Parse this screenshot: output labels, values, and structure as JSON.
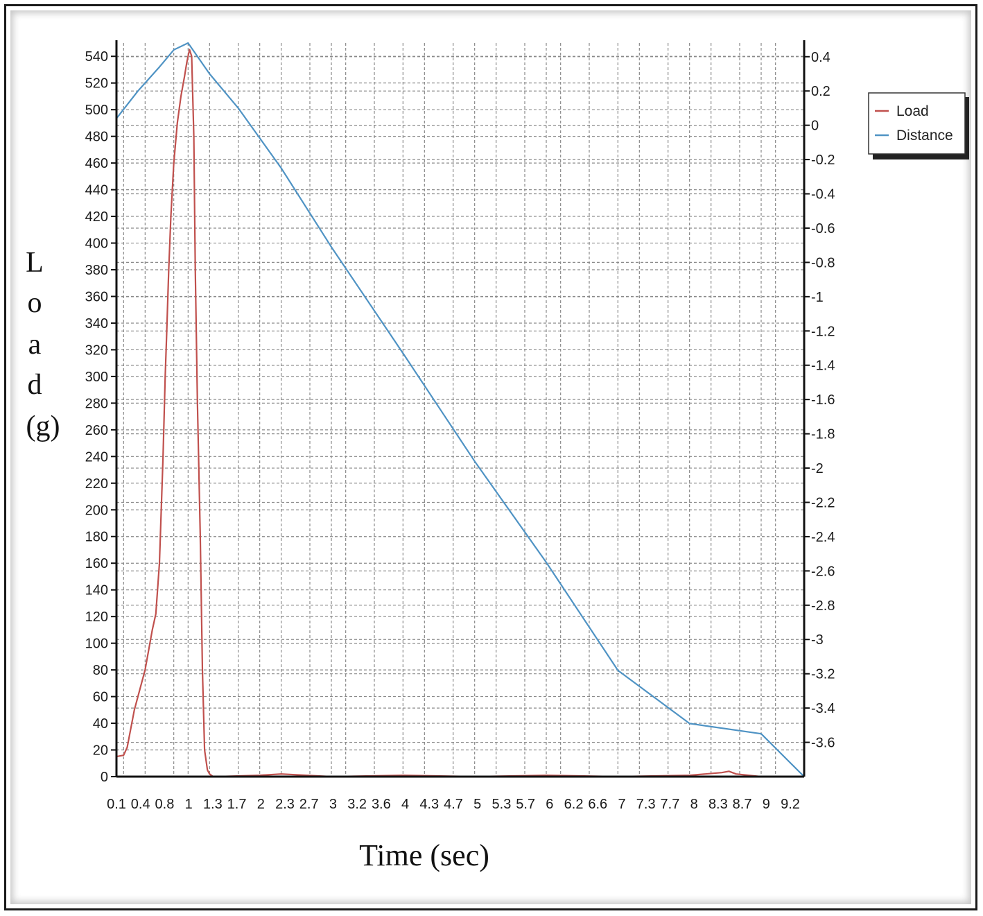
{
  "chart_data": {
    "type": "line",
    "xlabel": "Time (sec)",
    "ylabel": "Load (g)",
    "ylabel_letters": [
      "L",
      "o",
      "a",
      "d",
      "(g)"
    ],
    "x_tick_labels": [
      "0.1",
      "0.4",
      "0.8",
      "1",
      "1.3",
      "1.7",
      "2",
      "2.3",
      "2.7",
      "3",
      "3.2",
      "3.6",
      "4",
      "4.3",
      "4.7",
      "5",
      "5.3",
      "5.7",
      "6",
      "6.2",
      "6.6",
      "7",
      "7.3",
      "7.7",
      "8",
      "8.3",
      "8.7",
      "9",
      "9.2"
    ],
    "x_tick_values": [
      0.1,
      0.4,
      0.8,
      1.0,
      1.3,
      1.7,
      2.0,
      2.3,
      2.7,
      3.0,
      3.2,
      3.6,
      4.0,
      4.3,
      4.7,
      5.0,
      5.3,
      5.7,
      6.0,
      6.2,
      6.6,
      7.0,
      7.3,
      7.7,
      8.0,
      8.3,
      8.7,
      9.0,
      9.2
    ],
    "xlim": [
      0,
      9.6
    ],
    "y_left": {
      "range": [
        0,
        550
      ],
      "ticks": [
        0,
        20,
        40,
        60,
        80,
        100,
        120,
        140,
        160,
        180,
        200,
        220,
        240,
        260,
        280,
        300,
        320,
        340,
        360,
        380,
        400,
        420,
        440,
        460,
        480,
        500,
        520,
        540
      ]
    },
    "y_right": {
      "range": [
        -3.8,
        0.48
      ],
      "ticks": [
        "0.4",
        "0.2",
        "0",
        "-0.2",
        "-0.4",
        "-0.6",
        "-0.8",
        "-1",
        "-1.2",
        "-1.4",
        "-1.6",
        "-1.8",
        "-2",
        "-2.2",
        "-2.4",
        "-2.6",
        "-2.8",
        "-3",
        "-3.2",
        "-3.4",
        "-3.6"
      ],
      "tick_values": [
        0.4,
        0.2,
        0,
        -0.2,
        -0.4,
        -0.6,
        -0.8,
        -1,
        -1.2,
        -1.4,
        -1.6,
        -1.8,
        -2,
        -2.2,
        -2.4,
        -2.6,
        -2.8,
        -3,
        -3.2,
        -3.4,
        -3.6
      ]
    },
    "grid": true,
    "legend": {
      "placement": "top-right",
      "entries": [
        "Load",
        "Distance"
      ]
    },
    "series": [
      {
        "name": "Load",
        "axis": "left",
        "color": "#c0504d",
        "x": [
          0.0,
          0.1,
          0.15,
          0.25,
          0.4,
          0.5,
          0.55,
          0.6,
          0.65,
          0.68,
          0.7,
          0.73,
          0.76,
          0.8,
          0.85,
          0.9,
          0.95,
          0.98,
          1.0,
          1.02,
          1.05,
          1.08,
          1.1,
          1.13,
          1.17,
          1.2,
          1.23,
          1.27,
          1.3,
          1.35,
          1.4,
          2.0,
          2.3,
          3.0,
          4.0,
          5.0,
          6.0,
          7.0,
          8.0,
          8.45,
          8.55,
          8.65,
          9.0,
          9.5
        ],
        "y": [
          15,
          16,
          22,
          50,
          80,
          110,
          122,
          160,
          240,
          300,
          330,
          380,
          420,
          460,
          490,
          510,
          525,
          535,
          540,
          545,
          540,
          480,
          380,
          280,
          180,
          80,
          20,
          5,
          2,
          0,
          0,
          1,
          2,
          0,
          1,
          0,
          1,
          0,
          1,
          3,
          4,
          2,
          0,
          0
        ]
      },
      {
        "name": "Distance",
        "axis": "right",
        "color": "#4f93c4",
        "x": [
          0.0,
          0.3,
          0.6,
          0.8,
          1.0,
          1.3,
          1.7,
          2.3,
          3.0,
          4.0,
          5.0,
          6.0,
          7.0,
          8.0,
          9.0,
          9.6
        ],
        "y": [
          0.04,
          0.2,
          0.34,
          0.44,
          0.48,
          0.3,
          0.1,
          -0.25,
          -0.71,
          -1.33,
          -1.96,
          -2.55,
          -3.18,
          -3.49,
          -3.55,
          -3.8
        ]
      }
    ],
    "colors": {
      "load": "#c0504d",
      "distance": "#4f93c4",
      "grid": "#8a8a8a",
      "axis": "#111111"
    }
  }
}
